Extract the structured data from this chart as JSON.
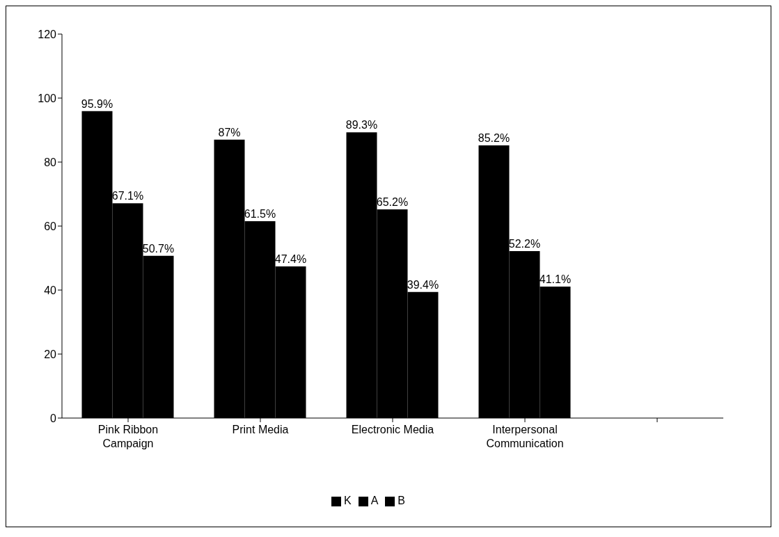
{
  "chart_data": {
    "type": "bar",
    "categories": [
      "Pink Ribbon Campaign",
      "Print Media",
      "Electronic Media",
      "Interpersonal Communication",
      null
    ],
    "series": [
      {
        "name": "K",
        "color": "#000000",
        "values": [
          95.9,
          87,
          89.3,
          85.2,
          null
        ],
        "value_labels": [
          "95.9%",
          "87%",
          "89.3%",
          "85.2%",
          null
        ]
      },
      {
        "name": "A",
        "color": "#000000",
        "values": [
          67.1,
          61.5,
          65.2,
          52.2,
          null
        ],
        "value_labels": [
          "67.1%",
          "61.5%",
          "65.2%",
          "52.2%",
          null
        ]
      },
      {
        "name": "B",
        "color": "#000000",
        "values": [
          50.7,
          47.4,
          39.4,
          41.1,
          null
        ],
        "value_labels": [
          "50.7%",
          "47.4%",
          "39.4%",
          "41.1%",
          null
        ]
      }
    ],
    "ylim": [
      0,
      120
    ],
    "yticks": [
      0,
      20,
      40,
      60,
      80,
      100,
      120
    ],
    "grid": false,
    "legend": "bottom"
  }
}
